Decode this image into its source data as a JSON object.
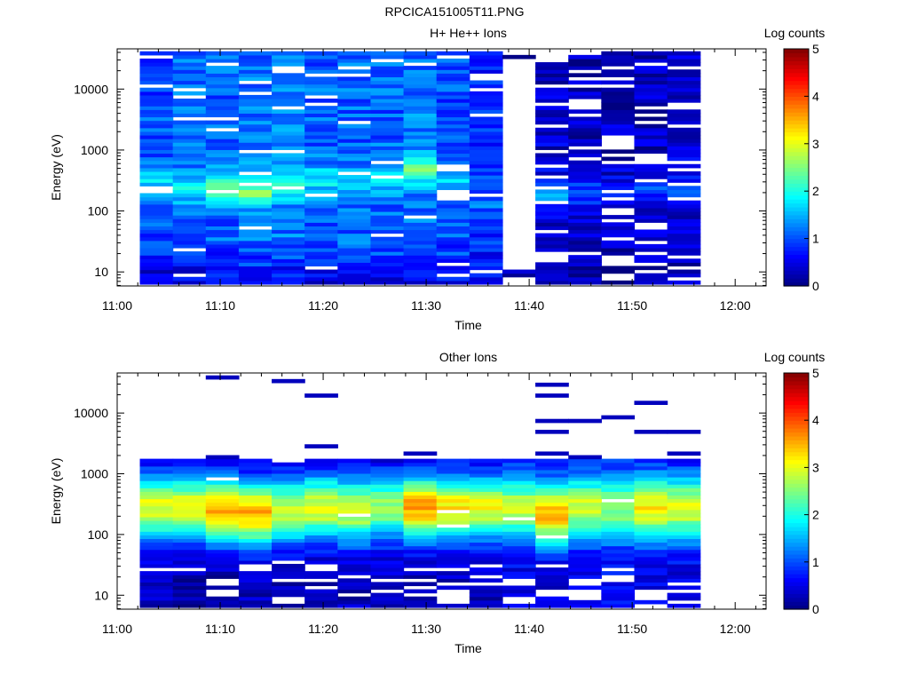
{
  "figure_title": "RPCICA151005T11.PNG",
  "chart_data": [
    {
      "type": "heatmap",
      "title": "H+ He++ Ions",
      "xlabel": "Time",
      "ylabel": "Energy (eV)",
      "colorbar_label": "Log counts",
      "x_ticks": [
        "11:00",
        "11:10",
        "11:20",
        "11:30",
        "11:40",
        "11:50",
        "12:00"
      ],
      "y_ticks": [
        "10",
        "100",
        "1000",
        "10000"
      ],
      "colorbar_ticks": [
        "0",
        "1",
        "2",
        "3",
        "4",
        "5"
      ],
      "xlim_minutes": [
        0,
        63
      ],
      "ylim_log10": [
        0.77,
        4.66
      ],
      "clim": [
        0,
        5
      ],
      "colormap": "jet",
      "y_scale": "log",
      "time_bins_minutes": [
        2.2,
        5.4,
        8.6,
        11.8,
        15.0,
        18.2,
        21.4,
        24.6,
        27.8,
        31.0,
        34.2,
        37.4,
        40.6,
        43.8,
        47.0,
        50.2,
        53.4,
        56.6
      ],
      "energy_bins_log10": [
        0.8,
        1.0,
        1.2,
        1.4,
        1.6,
        1.8,
        2.0,
        2.2,
        2.4,
        2.6,
        2.8,
        3.0,
        3.2,
        3.4,
        3.6,
        3.8,
        4.0,
        4.2,
        4.4,
        4.6
      ],
      "column_profiles": [
        {
          "peak_log10_eV": 2.5,
          "peak": 1.8,
          "base": 1.0,
          "floor": 0.3,
          "gap": 0.05
        },
        {
          "peak_log10_eV": 2.4,
          "peak": 1.9,
          "base": 1.1,
          "floor": 0.4,
          "gap": 0.05
        },
        {
          "peak_log10_eV": 2.4,
          "peak": 2.4,
          "base": 1.1,
          "floor": 0.5,
          "gap": 0.04
        },
        {
          "peak_log10_eV": 2.35,
          "peak": 2.5,
          "base": 1.2,
          "floor": 0.5,
          "gap": 0.04
        },
        {
          "peak_log10_eV": 2.4,
          "peak": 1.9,
          "base": 1.2,
          "floor": 0.5,
          "gap": 0.06
        },
        {
          "peak_log10_eV": 2.5,
          "peak": 1.8,
          "base": 1.1,
          "floor": 0.5,
          "gap": 0.05
        },
        {
          "peak_log10_eV": 2.4,
          "peak": 1.7,
          "base": 1.1,
          "floor": 0.4,
          "gap": 0.05
        },
        {
          "peak_log10_eV": 2.5,
          "peak": 1.7,
          "base": 1.1,
          "floor": 0.5,
          "gap": 0.06
        },
        {
          "peak_log10_eV": 2.7,
          "peak": 2.3,
          "base": 1.2,
          "floor": 0.6,
          "gap": 0.05
        },
        {
          "peak_log10_eV": 2.5,
          "peak": 1.7,
          "base": 1.0,
          "floor": 0.6,
          "gap": 0.07
        },
        {
          "peak_log10_eV": 2.2,
          "peak": 1.2,
          "base": 0.8,
          "floor": 0.7,
          "gap": 0.1
        },
        {
          "peak_log10_eV": 2.5,
          "peak": 0.8,
          "base": 0.3,
          "floor": 0.0,
          "gap": 0.45
        },
        {
          "peak_log10_eV": 2.3,
          "peak": 1.5,
          "base": 0.4,
          "floor": 0.2,
          "gap": 0.2
        },
        {
          "peak_log10_eV": 2.3,
          "peak": 0.9,
          "base": 0.3,
          "floor": 0.1,
          "gap": 0.25
        },
        {
          "peak_log10_eV": 2.3,
          "peak": 0.8,
          "base": 0.3,
          "floor": 0.1,
          "gap": 0.25
        },
        {
          "peak_log10_eV": 2.3,
          "peak": 0.9,
          "base": 0.3,
          "floor": 0.1,
          "gap": 0.25
        },
        {
          "peak_log10_eV": 2.3,
          "peak": 0.9,
          "base": 0.4,
          "floor": 0.2,
          "gap": 0.2
        }
      ]
    },
    {
      "type": "heatmap",
      "title": "Other Ions",
      "xlabel": "Time",
      "ylabel": "Energy (eV)",
      "colorbar_label": "Log counts",
      "x_ticks": [
        "11:00",
        "11:10",
        "11:20",
        "11:30",
        "11:40",
        "11:50",
        "12:00"
      ],
      "y_ticks": [
        "10",
        "100",
        "1000",
        "10000"
      ],
      "colorbar_ticks": [
        "0",
        "1",
        "2",
        "3",
        "4",
        "5"
      ],
      "xlim_minutes": [
        0,
        63
      ],
      "ylim_log10": [
        0.77,
        4.66
      ],
      "clim": [
        0,
        5
      ],
      "colormap": "jet",
      "y_scale": "log",
      "time_bins_minutes": [
        2.2,
        5.4,
        8.6,
        11.8,
        15.0,
        18.2,
        21.4,
        24.6,
        27.8,
        31.0,
        34.2,
        37.4,
        40.6,
        43.8,
        47.0,
        50.2,
        53.4,
        56.6
      ],
      "energy_bins_log10": [
        0.8,
        1.0,
        1.2,
        1.4,
        1.6,
        1.8,
        2.0,
        2.2,
        2.4,
        2.6,
        2.8,
        3.0,
        3.2,
        3.4,
        3.6,
        3.8,
        4.0,
        4.2,
        4.4,
        4.6
      ],
      "column_profiles": [
        {
          "peak_log10_eV": 2.45,
          "peak": 3.0,
          "width": 0.55,
          "floor": 0.3,
          "gap": 0.05
        },
        {
          "peak_log10_eV": 2.45,
          "peak": 3.1,
          "width": 0.55,
          "floor": 0.2,
          "gap": 0.05
        },
        {
          "peak_log10_eV": 2.4,
          "peak": 3.6,
          "width": 0.55,
          "floor": 0.2,
          "gap": 0.1
        },
        {
          "peak_log10_eV": 2.35,
          "peak": 3.5,
          "width": 0.55,
          "floor": 0.3,
          "gap": 0.15
        },
        {
          "peak_log10_eV": 2.4,
          "peak": 2.9,
          "width": 0.55,
          "floor": 0.3,
          "gap": 0.1
        },
        {
          "peak_log10_eV": 2.45,
          "peak": 3.0,
          "width": 0.55,
          "floor": 0.3,
          "gap": 0.15
        },
        {
          "peak_log10_eV": 2.4,
          "peak": 2.9,
          "width": 0.55,
          "floor": 0.3,
          "gap": 0.15
        },
        {
          "peak_log10_eV": 2.45,
          "peak": 2.6,
          "width": 0.55,
          "floor": 0.3,
          "gap": 0.2
        },
        {
          "peak_log10_eV": 2.45,
          "peak": 3.6,
          "width": 0.55,
          "floor": 0.3,
          "gap": 0.15
        },
        {
          "peak_log10_eV": 2.45,
          "peak": 3.2,
          "width": 0.55,
          "floor": 0.3,
          "gap": 0.1
        },
        {
          "peak_log10_eV": 2.45,
          "peak": 3.1,
          "width": 0.55,
          "floor": 0.3,
          "gap": 0.15
        },
        {
          "peak_log10_eV": 2.45,
          "peak": 2.8,
          "width": 0.55,
          "floor": 0.5,
          "gap": 0.15
        },
        {
          "peak_log10_eV": 2.35,
          "peak": 3.5,
          "width": 0.55,
          "floor": 0.4,
          "gap": 0.1
        },
        {
          "peak_log10_eV": 2.45,
          "peak": 2.9,
          "width": 0.55,
          "floor": 0.5,
          "gap": 0.15
        },
        {
          "peak_log10_eV": 2.45,
          "peak": 2.6,
          "width": 0.55,
          "floor": 0.6,
          "gap": 0.1
        },
        {
          "peak_log10_eV": 2.45,
          "peak": 3.2,
          "width": 0.55,
          "floor": 0.5,
          "gap": 0.1
        },
        {
          "peak_log10_eV": 2.45,
          "peak": 3.0,
          "width": 0.55,
          "floor": 0.5,
          "gap": 0.1
        }
      ]
    }
  ]
}
